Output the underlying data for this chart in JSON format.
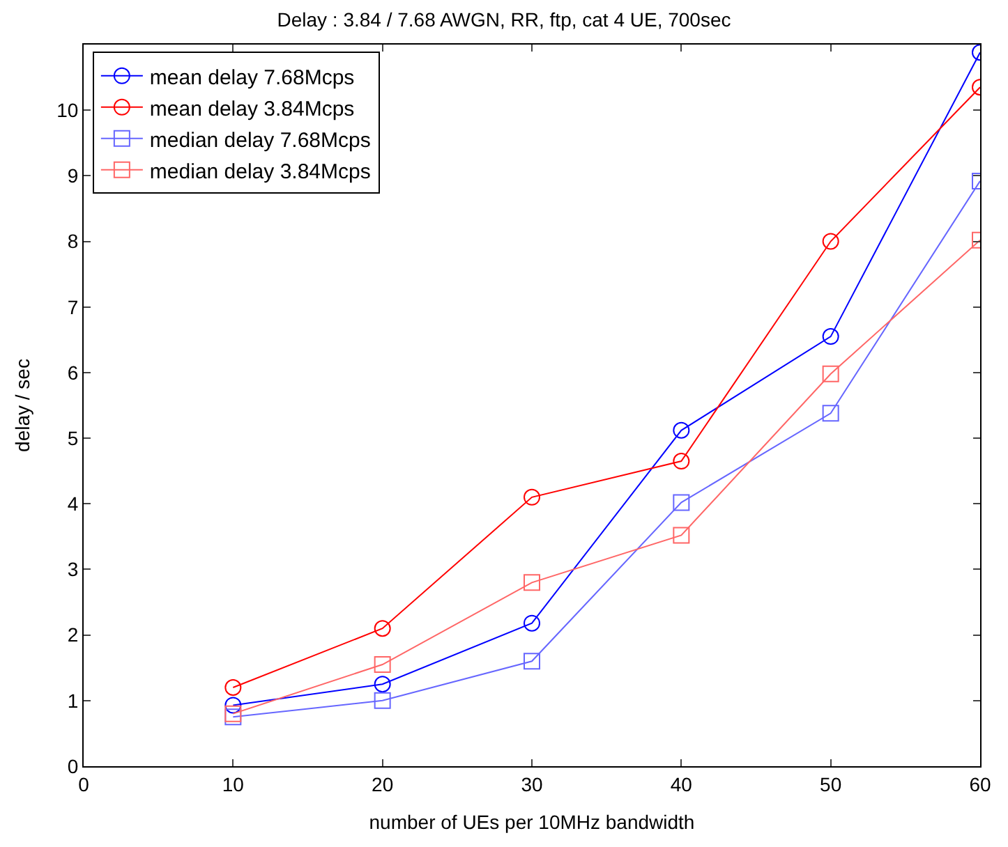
{
  "chart_data": {
    "type": "line",
    "title": "Delay : 3.84 / 7.68 AWGN, RR, ftp, cat 4 UE, 700sec",
    "xlabel": "number of UEs per 10MHz bandwidth",
    "ylabel": "delay / sec",
    "x": [
      10,
      20,
      30,
      40,
      50,
      60
    ],
    "series": [
      {
        "name": "mean delay 7.68Mcps",
        "color": "#0000ff",
        "marker": "circle",
        "values": [
          0.93,
          1.25,
          2.18,
          5.12,
          6.55,
          10.88
        ]
      },
      {
        "name": "mean delay 3.84Mcps",
        "color": "#ff0000",
        "marker": "circle",
        "values": [
          1.2,
          2.1,
          4.1,
          4.65,
          8.0,
          10.35
        ]
      },
      {
        "name": "median delay 7.68Mcps",
        "color": "#6666ff",
        "marker": "square",
        "values": [
          0.75,
          1.0,
          1.6,
          4.02,
          5.38,
          8.92
        ]
      },
      {
        "name": "median delay 3.84Mcps",
        "color": "#ff6666",
        "marker": "square",
        "values": [
          0.8,
          1.55,
          2.8,
          3.52,
          5.98,
          8.02
        ]
      }
    ],
    "xlim": [
      0,
      60
    ],
    "xticks": [
      0,
      10,
      20,
      30,
      40,
      50,
      60
    ],
    "ylim": [
      0,
      11
    ],
    "yticks": [
      0,
      1,
      2,
      3,
      4,
      5,
      6,
      7,
      8,
      9,
      10
    ],
    "grid": false,
    "legend": "top left"
  }
}
